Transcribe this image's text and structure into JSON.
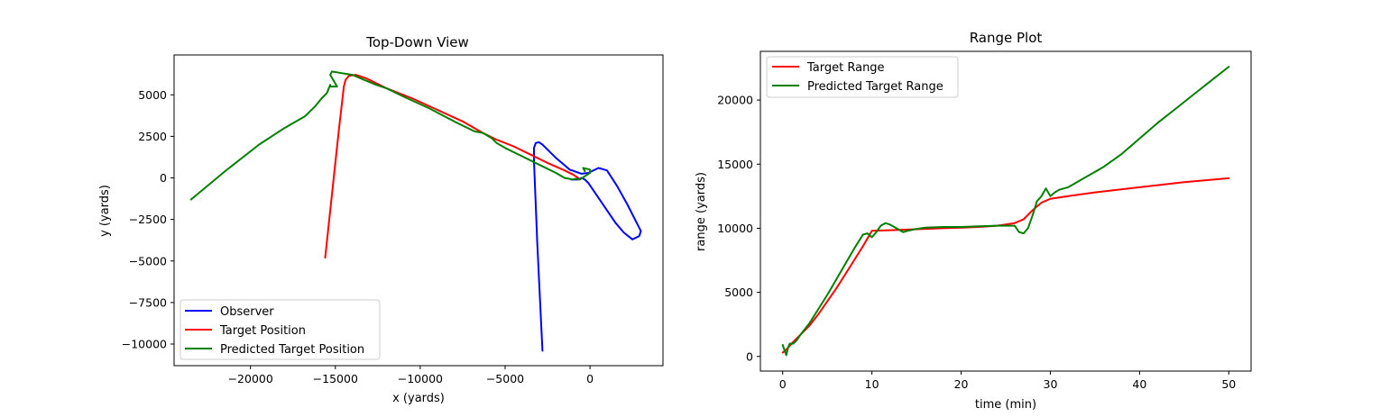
{
  "chart_data": [
    {
      "type": "line",
      "title": "Top-Down View",
      "xlabel": "x (yards)",
      "ylabel": "y (yards)",
      "xlim": [
        -24500,
        4300
      ],
      "ylim": [
        -11300,
        7400
      ],
      "xticks": [
        -20000,
        -15000,
        -10000,
        -5000,
        0
      ],
      "xtick_labels": [
        "−20000",
        "−15000",
        "−10000",
        "−5000",
        "0"
      ],
      "yticks": [
        -10000,
        -7500,
        -5000,
        -2500,
        0,
        2500,
        5000
      ],
      "ytick_labels": [
        "−10000",
        "−7500",
        "−5000",
        "−2500",
        "0",
        "2500",
        "5000"
      ],
      "grid": false,
      "legend_position": "lower-left",
      "series": [
        {
          "name": "Observer",
          "color": "#0000ff",
          "x": [
            -2800,
            -3100,
            -3300,
            -3300,
            -3200,
            -3000,
            -2800,
            -2000,
            -1200,
            -500,
            -100,
            100,
            500,
            1000,
            1600,
            2200,
            2800,
            3000,
            2900,
            2500,
            2000,
            1500,
            900,
            300,
            -100,
            -300,
            -500,
            -700,
            -900,
            -1100
          ],
          "y": [
            -10400,
            -4000,
            1000,
            1800,
            2100,
            2150,
            2000,
            1200,
            500,
            250,
            300,
            400,
            600,
            450,
            -500,
            -1600,
            -2800,
            -3200,
            -3500,
            -3700,
            -3300,
            -2700,
            -1800,
            -900,
            -300,
            -100,
            0,
            -100,
            -100,
            -100
          ]
        },
        {
          "name": "Target Position",
          "color": "#ff0000",
          "x": [
            -15600,
            -15200,
            -14800,
            -14500,
            -14400,
            -14200,
            -13800,
            -13200,
            -12000,
            -10500,
            -9000,
            -7500,
            -6300,
            -5500,
            -4500,
            -3500,
            -2500,
            -1600,
            -1000,
            -700
          ],
          "y": [
            -4800,
            -1000,
            2800,
            5500,
            5900,
            6150,
            6200,
            6000,
            5400,
            4800,
            4100,
            3400,
            2700,
            2300,
            1900,
            1400,
            900,
            500,
            200,
            0
          ]
        },
        {
          "name": "Predicted Target Position",
          "color": "#008000",
          "x": [
            -23500,
            -21500,
            -19500,
            -18000,
            -16800,
            -16200,
            -15800,
            -15500,
            -15300,
            -15300,
            -14900,
            -15300,
            -15200,
            -14600,
            -14000,
            -13300,
            -12600,
            -12000,
            -11000,
            -9500,
            -8000,
            -6800,
            -6300,
            -5800,
            -5500,
            -5000,
            -4000,
            -3000,
            -2000,
            -1500,
            -1000,
            -800,
            -600,
            -300,
            0,
            0,
            -400,
            -300
          ],
          "y": [
            -1300,
            400,
            2000,
            3000,
            3700,
            4300,
            4800,
            5100,
            5600,
            5500,
            5500,
            6200,
            6400,
            6300,
            6200,
            5900,
            5600,
            5400,
            4900,
            4200,
            3400,
            2800,
            2700,
            2400,
            2100,
            1800,
            1300,
            800,
            300,
            0,
            -100,
            -50,
            -100,
            100,
            300,
            500,
            600,
            400
          ]
        }
      ]
    },
    {
      "type": "line",
      "title": "Range Plot",
      "xlabel": "time (min)",
      "ylabel": "range (yards)",
      "xlim": [
        -2.5,
        52.5
      ],
      "ylim": [
        -1140,
        23800
      ],
      "xticks": [
        0,
        10,
        20,
        30,
        40,
        50
      ],
      "xtick_labels": [
        "0",
        "10",
        "20",
        "30",
        "40",
        "50"
      ],
      "yticks": [
        0,
        5000,
        10000,
        15000,
        20000
      ],
      "ytick_labels": [
        "0",
        "5000",
        "10000",
        "15000",
        "20000"
      ],
      "grid": false,
      "legend_position": "upper-left",
      "series": [
        {
          "name": "Target Range",
          "color": "#ff0000",
          "x": [
            0,
            0.5,
            1,
            2,
            3,
            4,
            5,
            6,
            7,
            8,
            9,
            9.5,
            10,
            12,
            14,
            16,
            18,
            20,
            22,
            24,
            25,
            26,
            27,
            28,
            29,
            30,
            32,
            35,
            40,
            45,
            50
          ],
          "y": [
            300,
            600,
            1000,
            1700,
            2400,
            3300,
            4300,
            5300,
            6400,
            7500,
            8600,
            9200,
            9800,
            9850,
            9900,
            9950,
            10000,
            10050,
            10100,
            10200,
            10300,
            10400,
            10700,
            11400,
            12000,
            12300,
            12500,
            12800,
            13200,
            13600,
            13900
          ]
        },
        {
          "name": "Predicted Target Range",
          "color": "#008000",
          "x": [
            0,
            0.2,
            0.4,
            0.6,
            0.8,
            1.2,
            1.6,
            2,
            3,
            4,
            5,
            6,
            7,
            8,
            9,
            9.5,
            10,
            10.5,
            11,
            11.5,
            12,
            12.5,
            13,
            13.5,
            14,
            15,
            16,
            18,
            20,
            22,
            24,
            26,
            26.5,
            27,
            27.5,
            28,
            28.5,
            29,
            29.5,
            30,
            30.5,
            31,
            32,
            34,
            36,
            38,
            40,
            42,
            44,
            46,
            48,
            50
          ],
          "y": [
            900,
            500,
            100,
            700,
            1000,
            1000,
            1300,
            1700,
            2600,
            3700,
            4800,
            6000,
            7200,
            8400,
            9500,
            9600,
            9300,
            9700,
            10200,
            10400,
            10300,
            10100,
            9900,
            9700,
            9800,
            9950,
            10050,
            10100,
            10100,
            10150,
            10200,
            10200,
            9700,
            9600,
            10000,
            11000,
            12100,
            12500,
            13100,
            12500,
            12800,
            13000,
            13200,
            14000,
            14800,
            15800,
            17000,
            18200,
            19300,
            20400,
            21500,
            22600
          ]
        }
      ]
    }
  ]
}
